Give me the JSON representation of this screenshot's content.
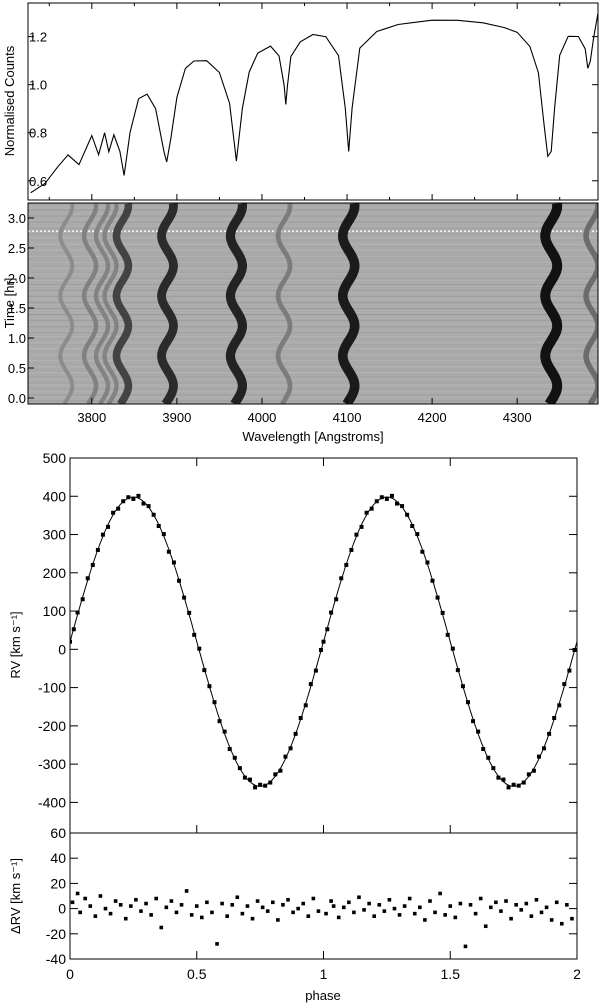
{
  "chart_data": [
    {
      "type": "line",
      "panel": "spectrum",
      "xlabel": "",
      "ylabel": "Normalised Counts",
      "xlim": [
        3725,
        4395
      ],
      "ylim": [
        0.52,
        1.34
      ],
      "yticks": [
        0.6,
        0.8,
        1.0,
        1.2
      ],
      "ytick_labels": [
        "0.6",
        "0.8",
        "1.0",
        "1.2"
      ],
      "series": [
        {
          "x": [
            3728,
            3745,
            3760,
            3772,
            3785,
            3800,
            3808,
            3815,
            3820,
            3826,
            3833,
            3838,
            3845,
            3855,
            3865,
            3875,
            3885,
            3888,
            3893,
            3900,
            3910,
            3920,
            3935,
            3950,
            3962,
            3970,
            3977,
            3985,
            3995,
            4010,
            4020,
            4026,
            4028,
            4030,
            4034,
            4045,
            4060,
            4075,
            4090,
            4098,
            4102,
            4106,
            4115,
            4135,
            4160,
            4180,
            4200,
            4230,
            4260,
            4285,
            4300,
            4315,
            4325,
            4332,
            4336,
            4340,
            4344,
            4350,
            4360,
            4372,
            4380,
            4383,
            4386,
            4390,
            4395
          ],
          "y": [
            0.55,
            0.59,
            0.66,
            0.71,
            0.67,
            0.79,
            0.71,
            0.8,
            0.72,
            0.79,
            0.72,
            0.62,
            0.8,
            0.94,
            0.96,
            0.9,
            0.72,
            0.68,
            0.78,
            0.95,
            1.07,
            1.1,
            1.1,
            1.05,
            0.92,
            0.68,
            0.9,
            1.05,
            1.13,
            1.16,
            1.12,
            1.0,
            0.92,
            1.0,
            1.12,
            1.18,
            1.21,
            1.2,
            1.12,
            0.9,
            0.72,
            0.9,
            1.15,
            1.22,
            1.25,
            1.26,
            1.27,
            1.27,
            1.26,
            1.24,
            1.22,
            1.16,
            1.05,
            0.82,
            0.7,
            0.72,
            0.9,
            1.12,
            1.2,
            1.2,
            1.15,
            1.07,
            1.1,
            1.2,
            1.3
          ]
        }
      ]
    },
    {
      "type": "heatmap",
      "panel": "trailed-spectrogram",
      "xlabel": "Wavelength [Angstroms]",
      "ylabel": "Time [hr]",
      "xlim": [
        3725,
        4395
      ],
      "ylim": [
        -0.1,
        3.25
      ],
      "xticks": [
        3800,
        3900,
        4000,
        4100,
        4200,
        4300
      ],
      "xtick_labels": [
        "3800",
        "3900",
        "4000",
        "4100",
        "4200",
        "4300"
      ],
      "yticks": [
        0.0,
        0.5,
        1.0,
        1.5,
        2.0,
        2.5,
        3.0
      ],
      "ytick_labels": [
        "0.0",
        "0.5",
        "1.0",
        "1.5",
        "2.0",
        "2.5",
        "3.0"
      ],
      "absorption_lines": [
        {
          "x": 3770,
          "strength": 0.25
        },
        {
          "x": 3798,
          "strength": 0.32
        },
        {
          "x": 3812,
          "strength": 0.3
        },
        {
          "x": 3822,
          "strength": 0.3
        },
        {
          "x": 3836,
          "strength": 0.7
        },
        {
          "x": 3889,
          "strength": 0.85
        },
        {
          "x": 3970,
          "strength": 0.9
        },
        {
          "x": 4026,
          "strength": 0.35
        },
        {
          "x": 4102,
          "strength": 0.95
        },
        {
          "x": 4340,
          "strength": 1.0
        },
        {
          "x": 4388,
          "strength": 0.45
        }
      ],
      "period_hr": 1.0,
      "shift_amplitude_angstrom": 7
    },
    {
      "type": "scatter",
      "panel": "radial-velocity",
      "xlabel": "",
      "ylabel": "RV  [km s⁻¹]",
      "xlim": [
        0,
        2
      ],
      "ylim": [
        -480,
        500
      ],
      "yticks": [
        -400,
        -300,
        -200,
        -100,
        0,
        100,
        200,
        300,
        400,
        500
      ],
      "ytick_labels": [
        "-400",
        "-300",
        "-200",
        "-100",
        "0",
        "100",
        "200",
        "300",
        "400",
        "500"
      ],
      "model": {
        "gamma": 20,
        "K": 378,
        "phase0": 0.0
      },
      "series": [
        {
          "x": [
            0.0,
            0.015,
            0.03,
            0.05,
            0.07,
            0.09,
            0.11,
            0.13,
            0.15,
            0.17,
            0.19,
            0.21,
            0.23,
            0.25,
            0.27,
            0.29,
            0.31,
            0.33,
            0.35,
            0.37,
            0.39,
            0.41,
            0.43,
            0.45,
            0.47,
            0.49,
            0.51,
            0.53,
            0.55,
            0.57,
            0.59,
            0.61,
            0.63,
            0.65,
            0.67,
            0.69,
            0.71,
            0.73,
            0.75,
            0.77,
            0.79,
            0.81,
            0.83,
            0.85,
            0.87,
            0.89,
            0.91,
            0.93,
            0.95,
            0.97,
            0.99
          ],
          "y": [
            20,
            55,
            91,
            136,
            180,
            221,
            259,
            294,
            324,
            350,
            370,
            385,
            395,
            398,
            395,
            385,
            370,
            350,
            324,
            294,
            259,
            221,
            180,
            136,
            91,
            45,
            -1,
            -47,
            -91,
            -136,
            -180,
            -221,
            -259,
            -294,
            -324,
            -350,
            -370,
            -385,
            -355,
            -385,
            -370,
            -350,
            -324,
            -294,
            -259,
            -221,
            -180,
            -136,
            -91,
            -47,
            -1
          ]
        }
      ]
    },
    {
      "type": "scatter",
      "panel": "residuals",
      "xlabel": "phase",
      "ylabel": "ΔRV  [km s⁻¹]",
      "xlim": [
        0,
        2
      ],
      "ylim": [
        -40,
        60
      ],
      "xticks": [
        0,
        0.5,
        1,
        1.5,
        2
      ],
      "xtick_labels": [
        "0",
        "0.5",
        "1",
        "1.5",
        "2"
      ],
      "yticks": [
        -40,
        -20,
        0,
        20,
        40,
        60
      ],
      "ytick_labels": [
        "-40",
        "-20",
        "0",
        "20",
        "40",
        "60"
      ],
      "series": [
        {
          "x": [
            0.01,
            0.03,
            0.04,
            0.06,
            0.08,
            0.1,
            0.12,
            0.14,
            0.16,
            0.18,
            0.2,
            0.22,
            0.24,
            0.26,
            0.28,
            0.3,
            0.32,
            0.34,
            0.36,
            0.38,
            0.4,
            0.42,
            0.44,
            0.46,
            0.48,
            0.5,
            0.52,
            0.54,
            0.56,
            0.58,
            0.6,
            0.62,
            0.64,
            0.66,
            0.68,
            0.7,
            0.72,
            0.74,
            0.76,
            0.78,
            0.8,
            0.82,
            0.84,
            0.86,
            0.88,
            0.9,
            0.92,
            0.94,
            0.96,
            0.98,
            1.01,
            1.03,
            1.04,
            1.06,
            1.08,
            1.1,
            1.12,
            1.14,
            1.16,
            1.18,
            1.2,
            1.22,
            1.24,
            1.26,
            1.28,
            1.3,
            1.32,
            1.34,
            1.36,
            1.38,
            1.4,
            1.42,
            1.44,
            1.46,
            1.48,
            1.5,
            1.52,
            1.54,
            1.56,
            1.58,
            1.6,
            1.62,
            1.64,
            1.66,
            1.68,
            1.7,
            1.72,
            1.74,
            1.76,
            1.78,
            1.8,
            1.82,
            1.84,
            1.86,
            1.88,
            1.9,
            1.92,
            1.94,
            1.96,
            1.98
          ],
          "y": [
            5,
            12,
            -3,
            8,
            2,
            -6,
            10,
            0,
            -4,
            6,
            3,
            -8,
            2,
            7,
            -2,
            4,
            -5,
            8,
            -15,
            1,
            6,
            -3,
            3,
            14,
            -5,
            2,
            -7,
            5,
            -3,
            -28,
            4,
            -6,
            3,
            9,
            -4,
            2,
            -8,
            6,
            1,
            -2,
            5,
            -9,
            3,
            7,
            -3,
            0,
            4,
            -6,
            8,
            -2,
            -4,
            6,
            2,
            -7,
            1,
            5,
            -3,
            9,
            -1,
            4,
            -6,
            3,
            -2,
            7,
            0,
            -5,
            2,
            8,
            -4,
            1,
            -9,
            6,
            -3,
            12,
            -5,
            2,
            -7,
            4,
            -30,
            3,
            -4,
            8,
            -14,
            1,
            5,
            -2,
            6,
            -8,
            3,
            -1,
            4,
            -6,
            7,
            -3,
            1,
            -9,
            5,
            -12,
            3,
            -8
          ]
        }
      ]
    }
  ]
}
